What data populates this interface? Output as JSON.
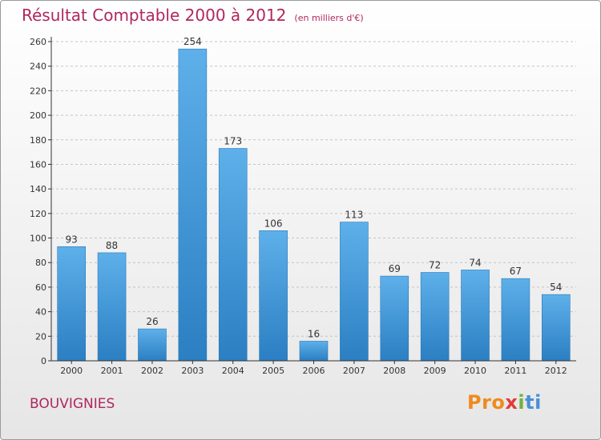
{
  "title": "Résultat Comptable 2000 à 2012",
  "subtitle": "(en milliers d'€)",
  "place": "BOUVIGNIES",
  "logo": [
    "Pro",
    "x",
    "i",
    "ti"
  ],
  "colors": {
    "title": "#b0275d",
    "bar_top": "#5eb0ea",
    "bar_bottom": "#2b7fc2"
  },
  "chart_data": {
    "type": "bar",
    "title": "Résultat Comptable 2000 à 2012",
    "subtitle": "(en milliers d'€)",
    "xlabel": "",
    "ylabel": "",
    "categories": [
      "2000",
      "2001",
      "2002",
      "2003",
      "2004",
      "2005",
      "2006",
      "2007",
      "2008",
      "2009",
      "2010",
      "2011",
      "2012"
    ],
    "values": [
      93,
      88,
      26,
      254,
      173,
      106,
      16,
      113,
      69,
      72,
      74,
      67,
      54
    ],
    "ylim": [
      0,
      260
    ],
    "yticks": [
      0,
      20,
      40,
      60,
      80,
      100,
      120,
      140,
      160,
      180,
      200,
      220,
      240,
      260
    ],
    "grid": "horizontal-dashed",
    "legend": "none"
  }
}
